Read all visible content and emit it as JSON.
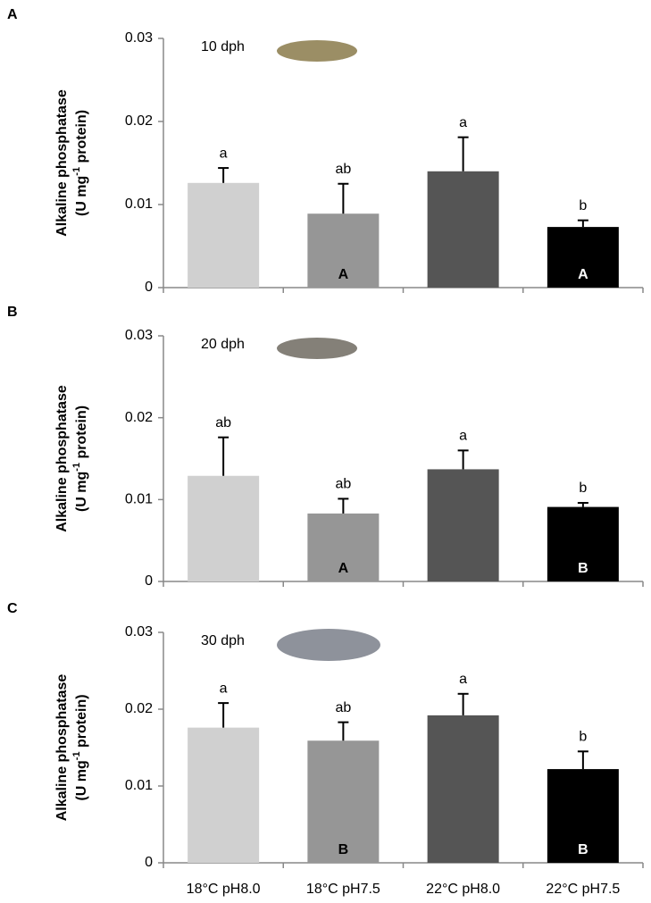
{
  "chart_data": [
    {
      "type": "bar",
      "panel": "A",
      "annotation": "10 dph",
      "ylabel": [
        "Alkaline phosphatase",
        "(U mg",
        "-1",
        " protein)"
      ],
      "categories": [
        null,
        null,
        null,
        null
      ],
      "values": [
        0.0126,
        0.0089,
        0.014,
        0.0073
      ],
      "errors": [
        0.0018,
        0.0036,
        0.0041,
        0.0008
      ],
      "colors": [
        "#d0d0d0",
        "#969696",
        "#555555",
        "#000000"
      ],
      "significance": [
        "a",
        "ab",
        "a",
        "b"
      ],
      "group_letters": [
        null,
        "A",
        null,
        "A"
      ],
      "ylim": [
        0,
        0.03
      ],
      "yticks": [
        0,
        0.01,
        0.02,
        0.03
      ]
    },
    {
      "type": "bar",
      "panel": "B",
      "annotation": "20 dph",
      "ylabel": [
        "Alkaline phosphatase",
        "(U mg",
        "-1",
        " protein)"
      ],
      "categories": [
        null,
        null,
        null,
        null
      ],
      "values": [
        0.0129,
        0.0083,
        0.0137,
        0.0091
      ],
      "errors": [
        0.0047,
        0.0018,
        0.0023,
        0.0005
      ],
      "colors": [
        "#d0d0d0",
        "#969696",
        "#555555",
        "#000000"
      ],
      "significance": [
        "ab",
        "ab",
        "a",
        "b"
      ],
      "group_letters": [
        null,
        "A",
        null,
        "B"
      ],
      "ylim": [
        0,
        0.03
      ],
      "yticks": [
        0,
        0.01,
        0.02,
        0.03
      ]
    },
    {
      "type": "bar",
      "panel": "C",
      "annotation": "30 dph",
      "ylabel": [
        "Alkaline phosphatase",
        "(U mg",
        "-1",
        " protein)"
      ],
      "categories": [
        "18°C pH8.0",
        "18°C pH7.5",
        "22°C pH8.0",
        "22°C pH7.5"
      ],
      "values": [
        0.0176,
        0.0159,
        0.0192,
        0.0122
      ],
      "errors": [
        0.0032,
        0.0024,
        0.0028,
        0.0023
      ],
      "colors": [
        "#d0d0d0",
        "#969696",
        "#555555",
        "#000000"
      ],
      "significance": [
        "a",
        "ab",
        "a",
        "b"
      ],
      "group_letters": [
        null,
        "B",
        null,
        "B"
      ],
      "ylim": [
        0,
        0.03
      ],
      "yticks": [
        0,
        0.01,
        0.02,
        0.03
      ]
    }
  ]
}
